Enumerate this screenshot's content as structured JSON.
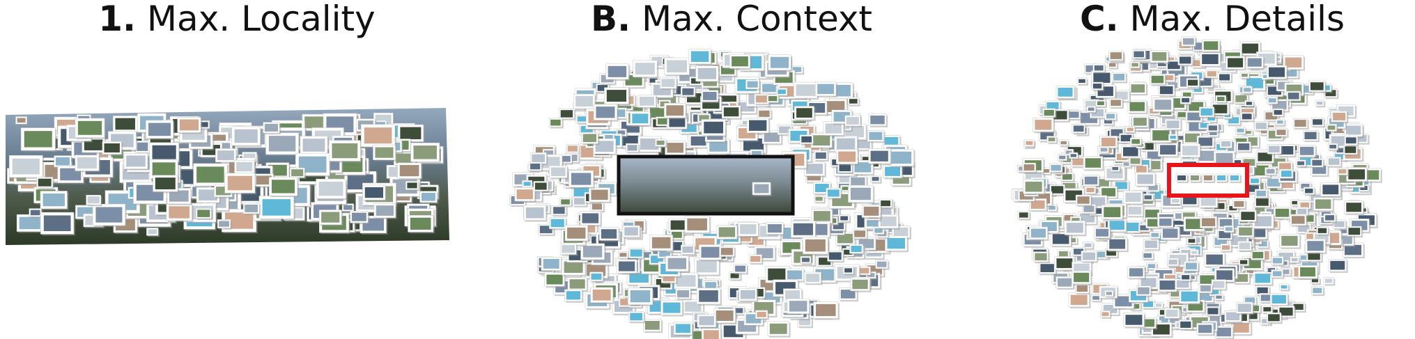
{
  "panels": [
    {
      "key": "1.",
      "label": "Max. Locality",
      "mode": "locality"
    },
    {
      "key": "B.",
      "label": "Max. Context",
      "mode": "context"
    },
    {
      "key": "C.",
      "label": "Max. Details",
      "mode": "details"
    }
  ],
  "colors": {
    "frame": "#ffffff",
    "shadow": "#9a9a9a",
    "highlight": "#e8141a",
    "title": "#111111",
    "thumb_palette": [
      "#7d8fa6",
      "#5d6f85",
      "#9aa8b8",
      "#6b8a5c",
      "#8a9c7a",
      "#b9c3cf",
      "#47596d",
      "#a58f7a",
      "#c8d0d8",
      "#3e4c3a",
      "#8fb4c9",
      "#d0a890",
      "#60b8d8"
    ]
  }
}
